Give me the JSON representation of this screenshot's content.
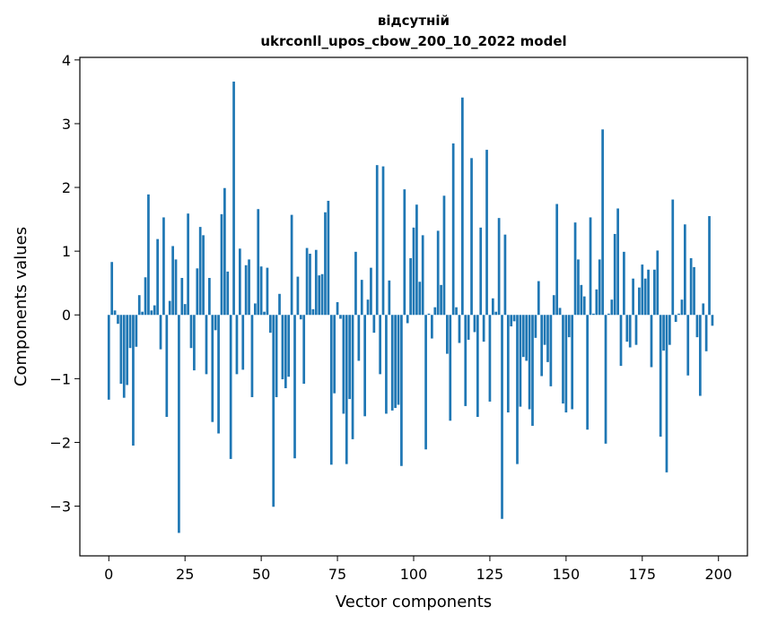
{
  "chart_data": {
    "type": "bar",
    "title": [
      "відсутній",
      "ukrconll_upos_cbow_200_10_2022 model"
    ],
    "xlabel": "Vector components",
    "ylabel": "Components values",
    "xlim": [
      -9.5,
      209.5
    ],
    "ylim": [
      -3.78,
      4.04
    ],
    "xticks": [
      0,
      25,
      50,
      75,
      100,
      125,
      150,
      175,
      200
    ],
    "yticks": [
      -3,
      -2,
      -1,
      0,
      1,
      2,
      3,
      4
    ],
    "grid": false,
    "bar_color": "#1f77b4",
    "values": [
      -1.33,
      0.83,
      0.07,
      -0.14,
      -1.08,
      -1.3,
      -1.1,
      -0.52,
      -2.05,
      -0.5,
      0.31,
      0.05,
      0.59,
      1.89,
      0.07,
      0.15,
      1.19,
      -0.54,
      1.53,
      -1.6,
      0.22,
      1.08,
      0.87,
      -3.42,
      0.58,
      0.17,
      1.59,
      -0.52,
      -0.87,
      0.73,
      1.38,
      1.25,
      -0.93,
      0.58,
      -1.68,
      -0.24,
      -1.86,
      1.58,
      1.99,
      0.68,
      -2.26,
      3.66,
      -0.93,
      1.04,
      -0.86,
      0.78,
      0.87,
      -1.29,
      0.18,
      1.66,
      0.76,
      0.05,
      0.74,
      -0.28,
      -3.01,
      -1.29,
      0.33,
      -1.01,
      -1.15,
      -0.97,
      1.57,
      -2.25,
      0.6,
      -0.07,
      -1.08,
      1.05,
      0.96,
      0.09,
      1.02,
      0.62,
      0.64,
      1.61,
      1.79,
      -2.35,
      -1.23,
      0.2,
      -0.06,
      -1.55,
      -2.34,
      -1.32,
      -1.95,
      0.99,
      -0.72,
      0.55,
      -1.59,
      0.24,
      0.74,
      -0.28,
      2.35,
      -0.93,
      2.33,
      -1.55,
      0.54,
      -1.5,
      -1.46,
      -1.41,
      -2.37,
      1.97,
      -0.13,
      0.89,
      1.37,
      1.73,
      0.52,
      1.25,
      -2.11,
      0.02,
      -0.37,
      0.12,
      1.32,
      0.47,
      1.87,
      -0.61,
      -1.66,
      2.69,
      0.12,
      -0.44,
      3.41,
      -1.43,
      -0.39,
      2.46,
      -0.27,
      -1.6,
      1.37,
      -0.42,
      2.59,
      -1.36,
      0.26,
      0.05,
      1.52,
      -3.2,
      1.26,
      -1.53,
      -0.18,
      -0.1,
      -2.34,
      -1.44,
      -0.66,
      -0.72,
      -1.48,
      -1.74,
      -0.36,
      0.53,
      -0.96,
      -0.47,
      -0.74,
      -1.12,
      0.31,
      1.74,
      0.11,
      -1.39,
      -1.53,
      -0.35,
      -1.48,
      1.45,
      0.87,
      0.47,
      0.29,
      -1.8,
      1.53,
      0.02,
      0.4,
      0.87,
      2.91,
      -2.02,
      0.02,
      0.24,
      1.27,
      1.67,
      -0.8,
      0.99,
      -0.42,
      -0.51,
      0.57,
      -0.47,
      0.43,
      0.79,
      0.57,
      0.71,
      -0.82,
      0.71,
      1.01,
      -1.91,
      -0.56,
      -2.47,
      -0.47,
      1.81,
      -0.11,
      0.02,
      0.24,
      1.42,
      -0.95,
      0.89,
      0.75,
      -0.35,
      -1.27,
      0.18,
      -0.57,
      1.55,
      -0.17
    ]
  }
}
